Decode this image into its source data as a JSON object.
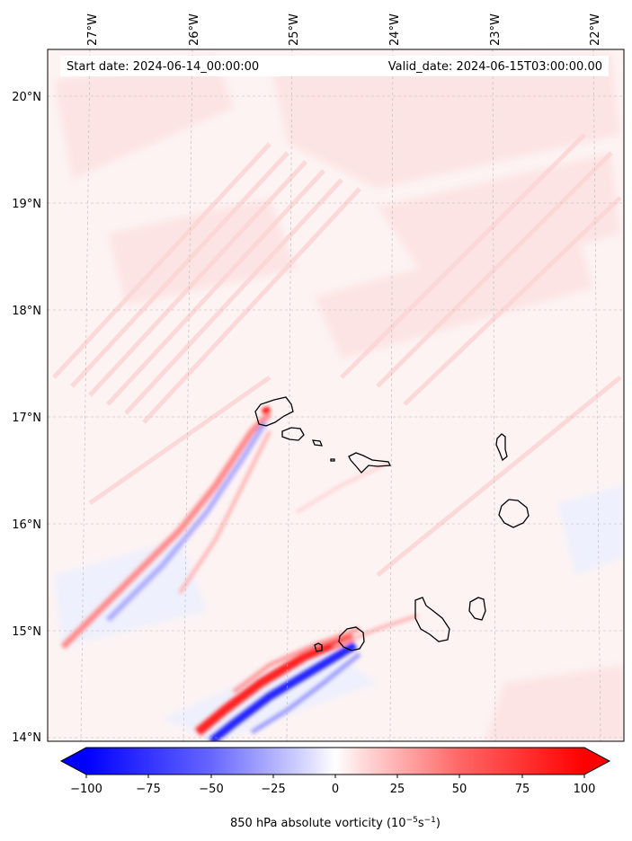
{
  "map": {
    "start_date_text": "Start date: 2024-06-14_00:00:00",
    "valid_date_text": "Valid_date: 2024-06-15T03:00:00.00",
    "lon_labels": [
      "27°W",
      "26°W",
      "25°W",
      "24°W",
      "23°W",
      "22°W"
    ],
    "lat_labels": [
      "20°N",
      "19°N",
      "18°N",
      "17°N",
      "16°N",
      "15°N",
      "14°N"
    ],
    "extent": {
      "lon_min": -27.35,
      "lon_max": -21.75,
      "lat_min": 13.95,
      "lat_max": 20.4
    }
  },
  "colorbar": {
    "ticks": [
      "−100",
      "−75",
      "−50",
      "−25",
      "0",
      "25",
      "50",
      "75",
      "100"
    ],
    "label": "850 hPa absolute vorticity (10",
    "label_exp1": "−5",
    "label_mid": "s",
    "label_exp2": "−1",
    "label_end": ")",
    "range": [
      -100,
      100
    ],
    "colors": {
      "negative": "#0000ff",
      "zero": "#ffffff",
      "positive": "#ff0000"
    }
  }
}
